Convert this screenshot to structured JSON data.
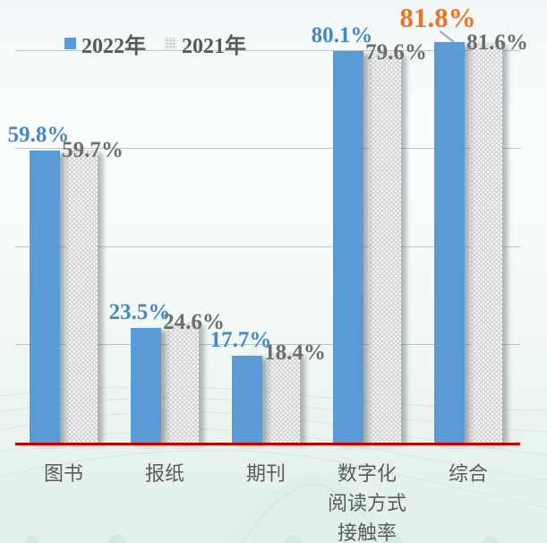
{
  "chart_data": {
    "type": "bar",
    "title": "",
    "categories": [
      "图书",
      "报纸",
      "期刊",
      "数字化阅读方式接触率",
      "综合"
    ],
    "category_lines": [
      [
        "图书"
      ],
      [
        "报纸"
      ],
      [
        "期刊"
      ],
      [
        "数字化",
        "阅读方式",
        "接触率"
      ],
      [
        "综合"
      ]
    ],
    "series": [
      {
        "name": "2022年",
        "values": [
          59.8,
          23.5,
          17.7,
          80.1,
          81.8
        ]
      },
      {
        "name": "2021年",
        "values": [
          59.7,
          24.6,
          18.4,
          79.6,
          81.6
        ]
      }
    ],
    "value_labels": [
      [
        "59.8%",
        "23.5%",
        "17.7%",
        "80.1%",
        "81.8%"
      ],
      [
        "59.7%",
        "24.6%",
        "18.4%",
        "79.6%",
        "81.6%"
      ]
    ],
    "highlight": {
      "series_index": 0,
      "category_index": 4,
      "text": "81.8%"
    },
    "ylim": [
      0,
      90
    ],
    "gridlines_pct": [
      20,
      40,
      60,
      80
    ],
    "grid_on": true,
    "legend_position": "top",
    "colors": {
      "bar_2022": "#5b9bd5",
      "bar_2021": "#d6d6d6",
      "label_2022": "#4787c7",
      "label_2021": "#6d6d6d",
      "highlight": "#ed7326",
      "baseline": "#c00000",
      "gridline": "#aab4ba",
      "legend_text": "#595959",
      "category_text": "#5c5c5c"
    }
  }
}
